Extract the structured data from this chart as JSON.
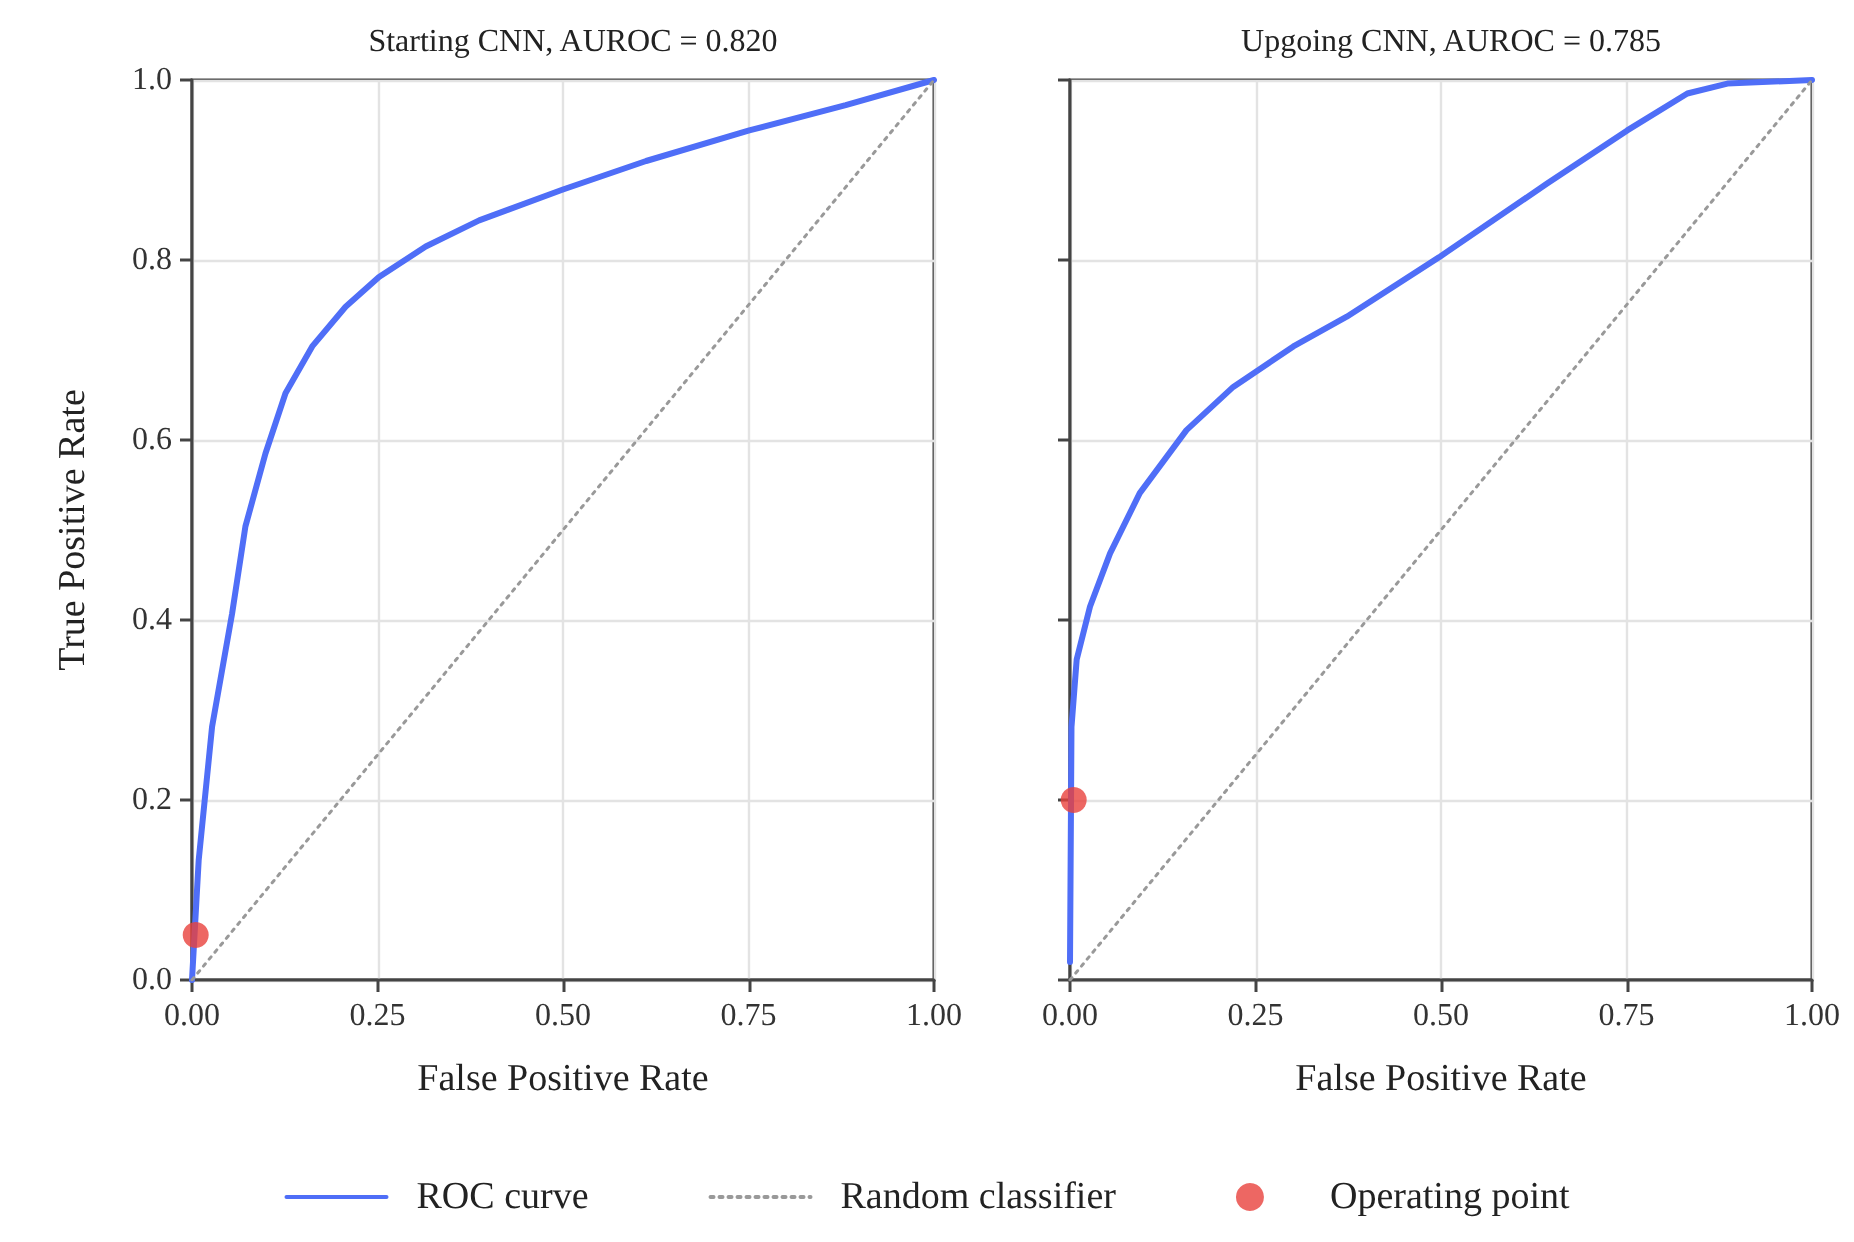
{
  "chart_data": [
    {
      "type": "line",
      "title": "Starting CNN, AUROC = 0.820",
      "xlabel": "False Positive Rate",
      "ylabel": "True Positive Rate",
      "xlim": [
        0,
        1
      ],
      "ylim": [
        0,
        1
      ],
      "xticks": [
        {
          "value": 0,
          "label": "0.00"
        },
        {
          "value": 0.25,
          "label": "0.25"
        },
        {
          "value": 0.5,
          "label": "0.50"
        },
        {
          "value": 0.75,
          "label": "0.75"
        },
        {
          "value": 1,
          "label": "1.00"
        }
      ],
      "yticks": [
        {
          "value": 0,
          "label": "0.0"
        },
        {
          "value": 0.2,
          "label": "0.2"
        },
        {
          "value": 0.4,
          "label": "0.4"
        },
        {
          "value": 0.6,
          "label": "0.6"
        },
        {
          "value": 0.8,
          "label": "0.8"
        },
        {
          "value": 1,
          "label": "1.0"
        }
      ],
      "grid": true,
      "legend": "bottom",
      "series": [
        {
          "name": "ROC curve",
          "color": "#4f6ef7",
          "line_style": "solid",
          "marker": "none",
          "x": [
            0,
            0.009,
            0.027,
            0.054,
            0.072,
            0.099,
            0.126,
            0.162,
            0.207,
            0.252,
            0.315,
            0.387,
            0.499,
            0.612,
            0.751,
            0.881,
            1
          ],
          "values": [
            0,
            0.133,
            0.281,
            0.407,
            0.504,
            0.585,
            0.652,
            0.704,
            0.748,
            0.781,
            0.815,
            0.844,
            0.878,
            0.91,
            0.944,
            0.972,
            1
          ]
        },
        {
          "name": "Random classifier",
          "color": "#999999",
          "line_style": "dotted",
          "marker": "none",
          "x": [
            0,
            1
          ],
          "values": [
            0,
            1
          ]
        },
        {
          "name": "Operating point",
          "type": "scatter",
          "color": "#e8413c",
          "marker": "circle",
          "x": [
            0.005
          ],
          "values": [
            0.05
          ]
        }
      ]
    },
    {
      "type": "line",
      "title": "Upgoing CNN, AUROC = 0.785",
      "xlabel": "False Positive Rate",
      "xlim": [
        0,
        1
      ],
      "ylim": [
        0,
        1
      ],
      "xticks": [
        {
          "value": 0,
          "label": "0.00"
        },
        {
          "value": 0.25,
          "label": "0.25"
        },
        {
          "value": 0.5,
          "label": "0.50"
        },
        {
          "value": 0.75,
          "label": "0.75"
        },
        {
          "value": 1,
          "label": "1.00"
        }
      ],
      "yticks": [
        {
          "value": 0,
          "label": null
        },
        {
          "value": 0.2,
          "label": null
        },
        {
          "value": 0.4,
          "label": null
        },
        {
          "value": 0.6,
          "label": null
        },
        {
          "value": 0.8,
          "label": null
        },
        {
          "value": 1,
          "label": null
        }
      ],
      "tick_labels": "x",
      "grid": true,
      "series": [
        {
          "color": "#4f6ef7",
          "line_style": "solid",
          "marker": "none",
          "x": [
            0,
            0.002,
            0.009,
            0.027,
            0.054,
            0.094,
            0.157,
            0.22,
            0.301,
            0.373,
            0.499,
            0.643,
            0.751,
            0.832,
            0.886,
            1
          ],
          "values": [
            0.02,
            0.281,
            0.356,
            0.415,
            0.474,
            0.541,
            0.611,
            0.659,
            0.704,
            0.737,
            0.804,
            0.885,
            0.944,
            0.985,
            0.996,
            1
          ]
        },
        {
          "color": "#999999",
          "line_style": "dotted",
          "marker": "none",
          "x": [
            0,
            1
          ],
          "values": [
            0,
            1
          ]
        },
        {
          "type": "scatter",
          "color": "#e8413c",
          "marker": "circle",
          "x": [
            0.005
          ],
          "values": [
            0.2
          ]
        }
      ]
    }
  ]
}
